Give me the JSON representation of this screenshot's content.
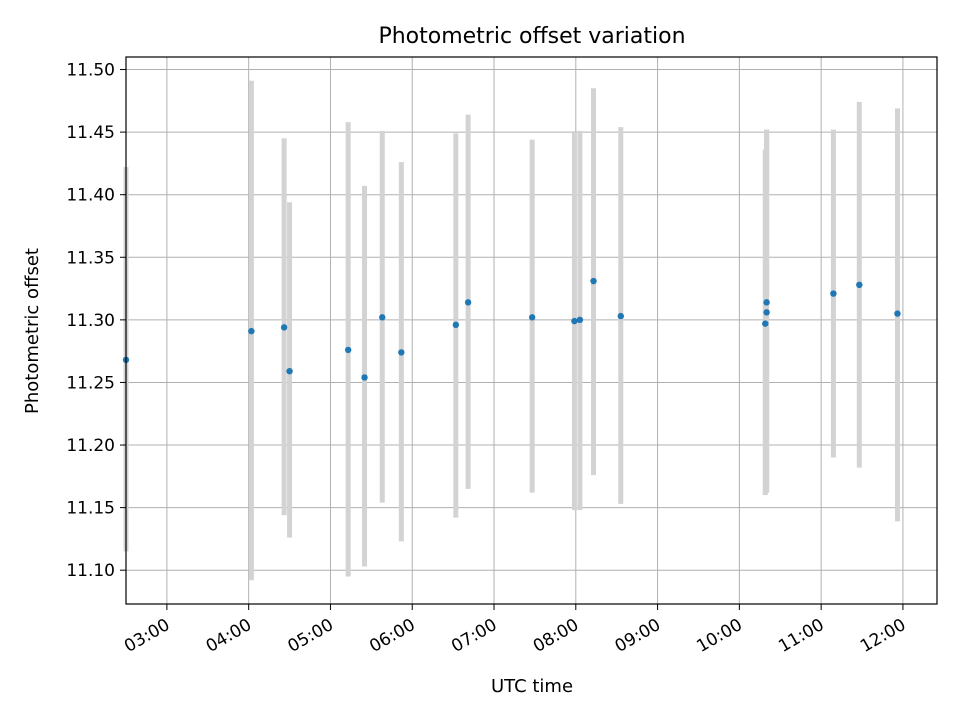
{
  "chart_data": {
    "type": "scatter",
    "title": "Photometric offset variation",
    "xlabel": "UTC time",
    "ylabel": "Photometric offset",
    "grid": true,
    "x_ticks": [
      "03:00",
      "04:00",
      "05:00",
      "06:00",
      "07:00",
      "08:00",
      "09:00",
      "10:00",
      "11:00",
      "12:00"
    ],
    "y_ticks": [
      "11.10",
      "11.15",
      "11.20",
      "11.25",
      "11.30",
      "11.35",
      "11.40",
      "11.45",
      "11.50"
    ],
    "xlim": [
      "02:30",
      "12:25"
    ],
    "ylim": [
      11.073,
      11.51
    ],
    "colors": {
      "point": "#1f77b4",
      "errorbar": "#d3d3d3",
      "grid": "#b0b0b0"
    },
    "series": [
      {
        "points": [
          {
            "x": "02:30",
            "y": 11.268,
            "ylow": 11.115,
            "yhigh": 11.422
          },
          {
            "x": "04:02",
            "y": 11.291,
            "ylow": 11.092,
            "yhigh": 11.491
          },
          {
            "x": "04:26",
            "y": 11.294,
            "ylow": 11.144,
            "yhigh": 11.445
          },
          {
            "x": "04:30",
            "y": 11.259,
            "ylow": 11.126,
            "yhigh": 11.394
          },
          {
            "x": "05:13",
            "y": 11.276,
            "ylow": 11.095,
            "yhigh": 11.458
          },
          {
            "x": "05:25",
            "y": 11.254,
            "ylow": 11.103,
            "yhigh": 11.407
          },
          {
            "x": "05:38",
            "y": 11.302,
            "ylow": 11.154,
            "yhigh": 11.451
          },
          {
            "x": "05:52",
            "y": 11.274,
            "ylow": 11.123,
            "yhigh": 11.426
          },
          {
            "x": "06:32",
            "y": 11.296,
            "ylow": 11.142,
            "yhigh": 11.449
          },
          {
            "x": "06:41",
            "y": 11.314,
            "ylow": 11.165,
            "yhigh": 11.464
          },
          {
            "x": "07:28",
            "y": 11.302,
            "ylow": 11.162,
            "yhigh": 11.444
          },
          {
            "x": "07:59",
            "y": 11.299,
            "ylow": 11.148,
            "yhigh": 11.45
          },
          {
            "x": "08:03",
            "y": 11.3,
            "ylow": 11.148,
            "yhigh": 11.451
          },
          {
            "x": "08:13",
            "y": 11.331,
            "ylow": 11.176,
            "yhigh": 11.485
          },
          {
            "x": "08:33",
            "y": 11.303,
            "ylow": 11.153,
            "yhigh": 11.454
          },
          {
            "x": "10:19",
            "y": 11.297,
            "ylow": 11.16,
            "yhigh": 11.436
          },
          {
            "x": "10:20",
            "y": 11.314,
            "ylow": 11.162,
            "yhigh": 11.452
          },
          {
            "x": "10:20",
            "y": 11.306,
            "ylow": 11.162,
            "yhigh": 11.452
          },
          {
            "x": "11:09",
            "y": 11.321,
            "ylow": 11.19,
            "yhigh": 11.452
          },
          {
            "x": "11:28",
            "y": 11.328,
            "ylow": 11.182,
            "yhigh": 11.474
          },
          {
            "x": "11:56",
            "y": 11.305,
            "ylow": 11.139,
            "yhigh": 11.469
          }
        ]
      }
    ]
  }
}
